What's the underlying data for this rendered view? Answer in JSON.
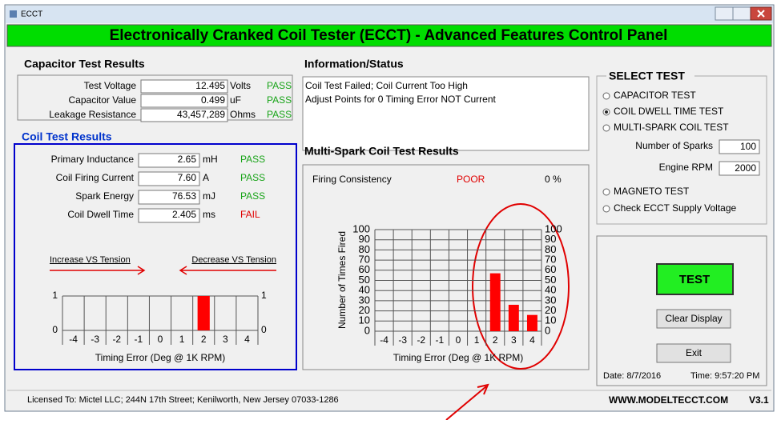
{
  "window_title": "ECCT",
  "header": "Electronically Cranked Coil Tester (ECCT)  -  Advanced Features Control Panel",
  "capacitor": {
    "title": "Capacitor Test Results",
    "rows": [
      {
        "label": "Test Voltage",
        "value": "12.495",
        "unit": "Volts",
        "status": "PASS",
        "color": "#17a317"
      },
      {
        "label": "Capacitor Value",
        "value": "0.499",
        "unit": "uF",
        "status": "PASS",
        "color": "#17a317"
      },
      {
        "label": "Leakage Resistance",
        "value": "43,457,289",
        "unit": "Ohms",
        "status": "PASS",
        "color": "#17a317"
      }
    ]
  },
  "coil": {
    "title": "Coil Test Results",
    "rows": [
      {
        "label": "Primary Inductance",
        "value": "2.65",
        "unit": "mH",
        "status": "PASS",
        "color": "#17a317"
      },
      {
        "label": "Coil Firing Current",
        "value": "7.60",
        "unit": "A",
        "status": "PASS",
        "color": "#17a317"
      },
      {
        "label": "Spark Energy",
        "value": "76.53",
        "unit": "mJ",
        "status": "PASS",
        "color": "#17a317"
      },
      {
        "label": "Coil Dwell Time",
        "value": "2.405",
        "unit": "ms",
        "status": "FAIL",
        "color": "#e00000"
      }
    ],
    "increase": "Increase VS Tension",
    "decrease": "Decrease VS Tension",
    "chart": {
      "categories": [
        "-4",
        "-3",
        "-2",
        "-1",
        "0",
        "1",
        "2",
        "3",
        "4"
      ],
      "values": [
        0,
        0,
        0,
        0,
        0,
        0,
        1,
        0,
        0
      ],
      "color": "#ff0000",
      "ylim": [
        0,
        1
      ],
      "yticks": [
        0,
        1
      ],
      "x_label": "Timing Error (Deg @ 1K RPM)"
    }
  },
  "info": {
    "title": "Information/Status",
    "lines": [
      "Coil Test Failed; Coil Current Too High",
      "Adjust Points for 0 Timing Error NOT Current"
    ]
  },
  "multispark": {
    "title": "Multi-Spark Coil Test Results",
    "consistency_label": "Firing  Consistency",
    "consistency": "POOR",
    "consistency_color": "#e00000",
    "percent": "0 %",
    "chart": {
      "y_label": "Number of Times Fired",
      "categories": [
        "-4",
        "-3",
        "-2",
        "-1",
        "0",
        "1",
        "2",
        "3",
        "4"
      ],
      "values": [
        0,
        0,
        0,
        0,
        0,
        0,
        57,
        26,
        16
      ],
      "color": "#ff0000",
      "ylim": [
        0,
        100
      ],
      "yticks": [
        0,
        10,
        20,
        30,
        40,
        50,
        60,
        70,
        80,
        90,
        100
      ],
      "x_label": "Timing Error (Deg @ 1K RPM)"
    }
  },
  "select_test": {
    "title": "SELECT TEST",
    "options": [
      {
        "label": "CAPACITOR TEST",
        "selected": false
      },
      {
        "label": "COIL DWELL TIME TEST",
        "selected": true
      },
      {
        "label": "MULTI-SPARK COIL TEST",
        "selected": false
      },
      {
        "label": "MAGNETO TEST",
        "selected": false
      },
      {
        "label": "Check ECCT Supply Voltage",
        "selected": false
      }
    ],
    "sparks_label": "Number of Sparks",
    "sparks": "100",
    "rpm_label": "Engine RPM",
    "rpm": "2000"
  },
  "buttons": {
    "test": "TEST",
    "clear": "Clear Display",
    "exit": "Exit"
  },
  "date": "Date: 8/7/2016",
  "time": "Time: 9:57:20 PM",
  "license": "Licensed To:  Mictel LLC; 244N 17th Street; Kenilworth, New Jersey 07033-1286",
  "website": "WWW.MODELTECCT.COM",
  "version": "V3.1"
}
